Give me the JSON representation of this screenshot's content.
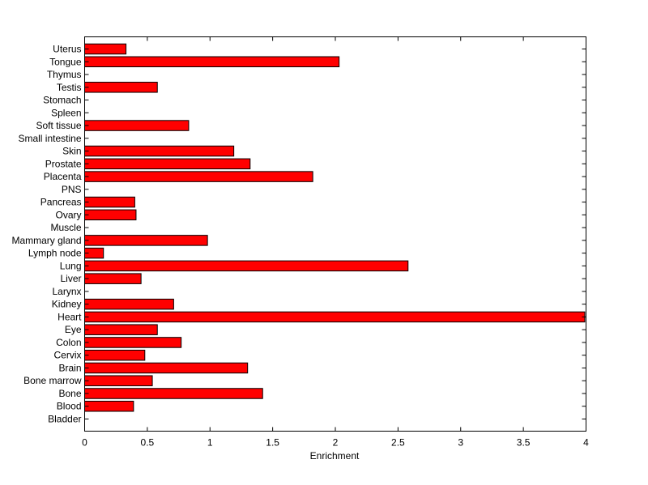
{
  "chart_data": {
    "type": "bar",
    "orientation": "horizontal",
    "xlabel": "Enrichment",
    "ylabel": "",
    "title": "",
    "xlim": [
      0,
      4
    ],
    "x_ticks": [
      "0",
      "0.5",
      "1",
      "1.5",
      "2",
      "2.5",
      "3",
      "3.5",
      "4"
    ],
    "bar_color": "#ff0000",
    "grid": false,
    "categories": [
      "Bladder",
      "Blood",
      "Bone",
      "Bone marrow",
      "Brain",
      "Cervix",
      "Colon",
      "Eye",
      "Heart",
      "Kidney",
      "Larynx",
      "Liver",
      "Lung",
      "Lymph node",
      "Mammary gland",
      "Muscle",
      "Ovary",
      "Pancreas",
      "PNS",
      "Placenta",
      "Prostate",
      "Skin",
      "Small intestine",
      "Soft tissue",
      "Spleen",
      "Stomach",
      "Testis",
      "Thymus",
      "Tongue",
      "Uterus"
    ],
    "values": [
      0,
      0.39,
      1.42,
      0.54,
      1.3,
      0.48,
      0.77,
      0.58,
      3.99,
      0.71,
      0,
      0.45,
      2.58,
      0.15,
      0.98,
      0,
      0.41,
      0.4,
      0,
      1.82,
      1.32,
      1.19,
      0,
      0.83,
      0,
      0,
      0.58,
      0,
      2.03,
      0.33
    ]
  }
}
